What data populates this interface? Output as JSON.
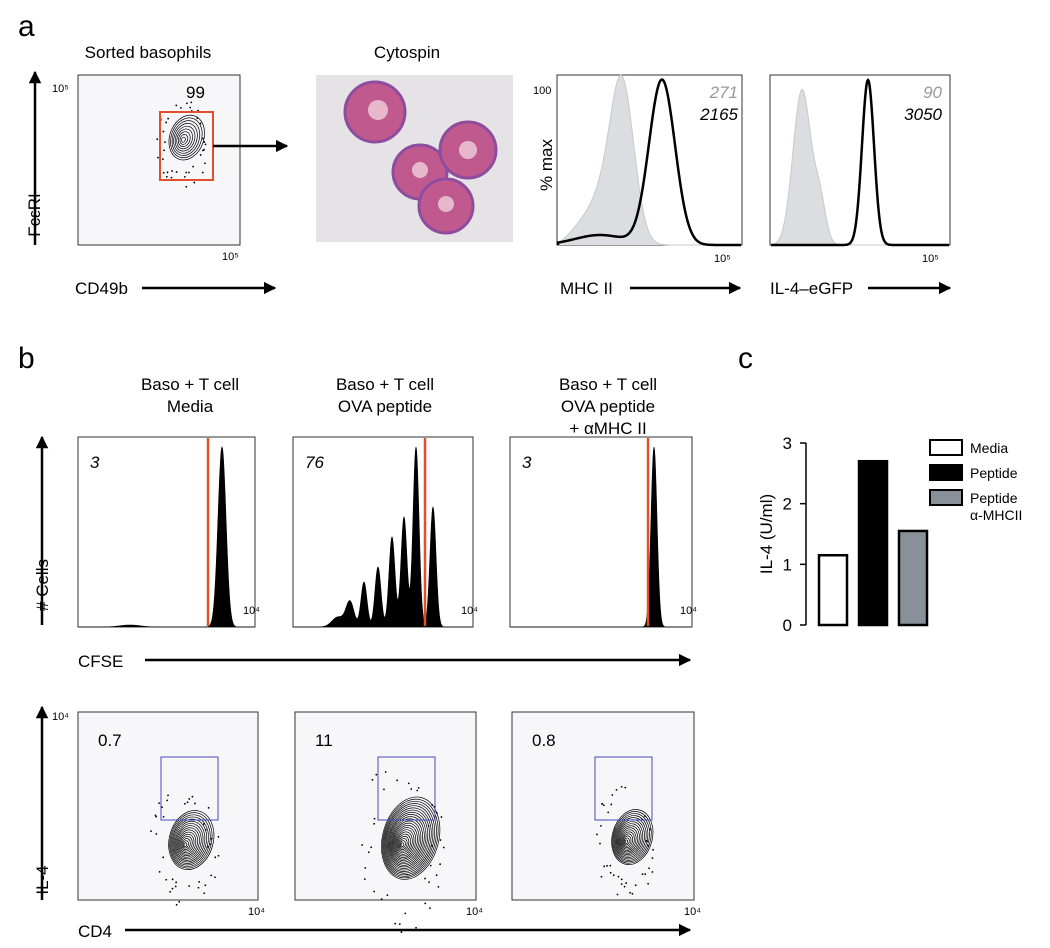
{
  "panels": {
    "a": {
      "label": "a",
      "sorted": {
        "title": "Sorted basophils",
        "ylabel": "FcεRI",
        "xlabel": "CD49b",
        "ytick": "10⁵",
        "xtick": "10⁵",
        "gate_value": "99"
      },
      "cytospin": {
        "title": "Cytospin"
      },
      "mhc": {
        "ylabel": "% max",
        "ytick": "100",
        "xtick": "10⁵",
        "xlabel": "MHC II",
        "control": "271",
        "sample": "2165"
      },
      "gfp": {
        "xtick": "10⁵",
        "xlabel": "IL-4–eGFP",
        "control": "90",
        "sample": "3050"
      }
    },
    "b": {
      "label": "b",
      "conditions": [
        [
          "Baso + T cell",
          "Media"
        ],
        [
          "Baso + T cell",
          "OVA peptide"
        ],
        [
          "Baso + T cell",
          "OVA peptide",
          "+ αMHC II"
        ]
      ],
      "cfse": {
        "ylabel": "# Cells",
        "xlabel": "CFSE",
        "xtick": "10⁴",
        "values": [
          "3",
          "76",
          "3"
        ]
      },
      "il4": {
        "ylabel": "IL-4",
        "xlabel": "CD4",
        "ytick": "10⁴",
        "xtick": "10⁴",
        "values": [
          "0.7",
          "11",
          "0.8"
        ]
      }
    },
    "c": {
      "label": "c"
    }
  },
  "chart_data": {
    "type": "bar",
    "ylabel": "IL-4 (U/ml)",
    "series": [
      {
        "name": "Media",
        "color": "#ffffff",
        "values": [
          1.15
        ]
      },
      {
        "name": "Peptide",
        "color": "#000000",
        "values": [
          2.7
        ]
      },
      {
        "name": "Peptide α-MHCII",
        "color": "#8a9099",
        "values": [
          1.55
        ]
      }
    ],
    "ylim": [
      0,
      3
    ],
    "yticks": [
      0,
      1,
      2,
      3
    ],
    "legend": "upper right"
  }
}
